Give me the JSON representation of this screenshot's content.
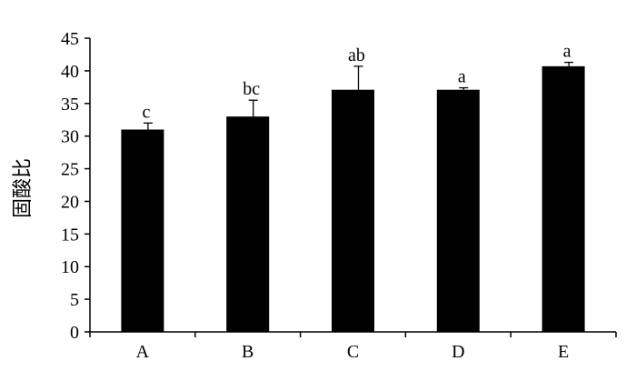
{
  "chart_data": {
    "type": "bar",
    "ylabel": "固酸比",
    "xlabel": "",
    "ylim": [
      0,
      45
    ],
    "y_ticks": [
      0,
      5,
      10,
      15,
      20,
      25,
      30,
      35,
      40,
      45
    ],
    "categories": [
      "A",
      "B",
      "C",
      "D",
      "E"
    ],
    "values": [
      31.0,
      33.0,
      37.1,
      37.1,
      40.7
    ],
    "error": [
      1.0,
      2.5,
      3.6,
      0.3,
      0.6
    ],
    "significance": [
      "c",
      "bc",
      "ab",
      "a",
      "a"
    ],
    "bar_color": "#000000",
    "grid": false
  }
}
